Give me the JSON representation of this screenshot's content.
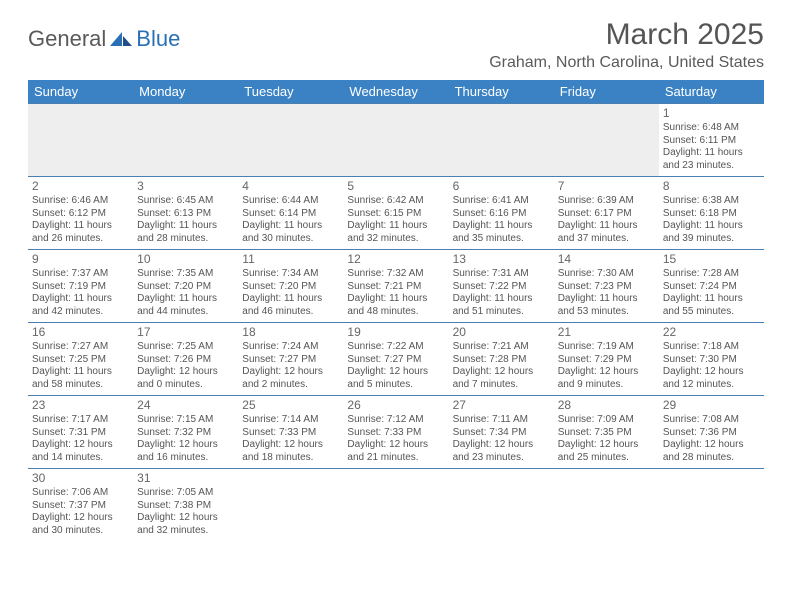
{
  "logo": {
    "text1": "General",
    "text2": "Blue"
  },
  "title": "March 2025",
  "location": "Graham, North Carolina, United States",
  "colors": {
    "header_bg": "#3b82c4",
    "header_text": "#ffffff",
    "row_border": "#4a7fb0",
    "blank_row_bg": "#eeeeee",
    "text": "#555555",
    "logo_gray": "#5a5a5a",
    "logo_blue": "#2a6fb5"
  },
  "typography": {
    "title_fontsize": 30,
    "location_fontsize": 16,
    "dayheader_fontsize": 13,
    "daynum_fontsize": 12,
    "body_fontsize": 10
  },
  "day_headers": [
    "Sunday",
    "Monday",
    "Tuesday",
    "Wednesday",
    "Thursday",
    "Friday",
    "Saturday"
  ],
  "weeks": [
    [
      null,
      null,
      null,
      null,
      null,
      null,
      {
        "n": "1",
        "sr": "6:48 AM",
        "ss": "6:11 PM",
        "dl": "11 hours and 23 minutes."
      }
    ],
    [
      {
        "n": "2",
        "sr": "6:46 AM",
        "ss": "6:12 PM",
        "dl": "11 hours and 26 minutes."
      },
      {
        "n": "3",
        "sr": "6:45 AM",
        "ss": "6:13 PM",
        "dl": "11 hours and 28 minutes."
      },
      {
        "n": "4",
        "sr": "6:44 AM",
        "ss": "6:14 PM",
        "dl": "11 hours and 30 minutes."
      },
      {
        "n": "5",
        "sr": "6:42 AM",
        "ss": "6:15 PM",
        "dl": "11 hours and 32 minutes."
      },
      {
        "n": "6",
        "sr": "6:41 AM",
        "ss": "6:16 PM",
        "dl": "11 hours and 35 minutes."
      },
      {
        "n": "7",
        "sr": "6:39 AM",
        "ss": "6:17 PM",
        "dl": "11 hours and 37 minutes."
      },
      {
        "n": "8",
        "sr": "6:38 AM",
        "ss": "6:18 PM",
        "dl": "11 hours and 39 minutes."
      }
    ],
    [
      {
        "n": "9",
        "sr": "7:37 AM",
        "ss": "7:19 PM",
        "dl": "11 hours and 42 minutes."
      },
      {
        "n": "10",
        "sr": "7:35 AM",
        "ss": "7:20 PM",
        "dl": "11 hours and 44 minutes."
      },
      {
        "n": "11",
        "sr": "7:34 AM",
        "ss": "7:20 PM",
        "dl": "11 hours and 46 minutes."
      },
      {
        "n": "12",
        "sr": "7:32 AM",
        "ss": "7:21 PM",
        "dl": "11 hours and 48 minutes."
      },
      {
        "n": "13",
        "sr": "7:31 AM",
        "ss": "7:22 PM",
        "dl": "11 hours and 51 minutes."
      },
      {
        "n": "14",
        "sr": "7:30 AM",
        "ss": "7:23 PM",
        "dl": "11 hours and 53 minutes."
      },
      {
        "n": "15",
        "sr": "7:28 AM",
        "ss": "7:24 PM",
        "dl": "11 hours and 55 minutes."
      }
    ],
    [
      {
        "n": "16",
        "sr": "7:27 AM",
        "ss": "7:25 PM",
        "dl": "11 hours and 58 minutes."
      },
      {
        "n": "17",
        "sr": "7:25 AM",
        "ss": "7:26 PM",
        "dl": "12 hours and 0 minutes."
      },
      {
        "n": "18",
        "sr": "7:24 AM",
        "ss": "7:27 PM",
        "dl": "12 hours and 2 minutes."
      },
      {
        "n": "19",
        "sr": "7:22 AM",
        "ss": "7:27 PM",
        "dl": "12 hours and 5 minutes."
      },
      {
        "n": "20",
        "sr": "7:21 AM",
        "ss": "7:28 PM",
        "dl": "12 hours and 7 minutes."
      },
      {
        "n": "21",
        "sr": "7:19 AM",
        "ss": "7:29 PM",
        "dl": "12 hours and 9 minutes."
      },
      {
        "n": "22",
        "sr": "7:18 AM",
        "ss": "7:30 PM",
        "dl": "12 hours and 12 minutes."
      }
    ],
    [
      {
        "n": "23",
        "sr": "7:17 AM",
        "ss": "7:31 PM",
        "dl": "12 hours and 14 minutes."
      },
      {
        "n": "24",
        "sr": "7:15 AM",
        "ss": "7:32 PM",
        "dl": "12 hours and 16 minutes."
      },
      {
        "n": "25",
        "sr": "7:14 AM",
        "ss": "7:33 PM",
        "dl": "12 hours and 18 minutes."
      },
      {
        "n": "26",
        "sr": "7:12 AM",
        "ss": "7:33 PM",
        "dl": "12 hours and 21 minutes."
      },
      {
        "n": "27",
        "sr": "7:11 AM",
        "ss": "7:34 PM",
        "dl": "12 hours and 23 minutes."
      },
      {
        "n": "28",
        "sr": "7:09 AM",
        "ss": "7:35 PM",
        "dl": "12 hours and 25 minutes."
      },
      {
        "n": "29",
        "sr": "7:08 AM",
        "ss": "7:36 PM",
        "dl": "12 hours and 28 minutes."
      }
    ],
    [
      {
        "n": "30",
        "sr": "7:06 AM",
        "ss": "7:37 PM",
        "dl": "12 hours and 30 minutes."
      },
      {
        "n": "31",
        "sr": "7:05 AM",
        "ss": "7:38 PM",
        "dl": "12 hours and 32 minutes."
      },
      null,
      null,
      null,
      null,
      null
    ]
  ],
  "labels": {
    "sunrise": "Sunrise:",
    "sunset": "Sunset:",
    "daylight": "Daylight:"
  }
}
